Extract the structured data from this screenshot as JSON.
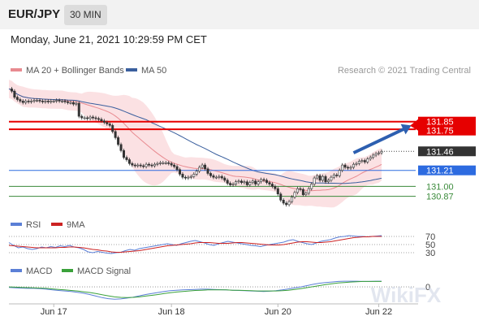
{
  "header": {
    "pair": "EUR/JPY",
    "timeframe": "30 MIN"
  },
  "datetime": "Monday, June 21, 2021 10:29:59 PM CET",
  "legend": {
    "ma20": "MA 20 + Bollinger Bands",
    "ma50": "MA 50",
    "credit": "Research © 2021 Trading Central"
  },
  "rsi_legend": {
    "rsi": "RSI",
    "ma": "9MA"
  },
  "macd_legend": {
    "macd": "MACD",
    "signal": "MACD Signal"
  },
  "colors": {
    "bollinger": "#f7c9cc",
    "ma20": "#e88a90",
    "ma50": "#3a5f9e",
    "resistance": "#e60000",
    "support": "#2d6be0",
    "support2": "#3a8a3a",
    "rsi": "#5b7fd6",
    "rsi_ma": "#cc2222",
    "macd": "#5b7fd6",
    "macd_signal": "#3aa13a"
  },
  "watermark": "WikiFX",
  "chart_data": [
    {
      "type": "line",
      "title": "EUR/JPY",
      "x_labels": [
        "Jun 17",
        "Jun 18",
        "Jun 20",
        "Jun 22"
      ],
      "x_label_index": [
        16,
        58,
        96,
        132
      ],
      "series": [
        {
          "name": "EUR/JPY",
          "values": [
            132.28,
            132.25,
            132.17,
            132.14,
            132.12,
            132.1,
            132.12,
            132.11,
            132.12,
            132.13,
            132.13,
            132.12,
            132.11,
            132.12,
            132.11,
            132.12,
            132.12,
            132.13,
            132.12,
            132.12,
            132.11,
            132.1,
            132.1,
            132.08,
            132.09,
            131.92,
            131.9,
            131.9,
            131.89,
            131.91,
            131.9,
            131.89,
            131.88,
            131.86,
            131.84,
            131.82,
            131.8,
            131.72,
            131.64,
            131.55,
            131.47,
            131.38,
            131.35,
            131.3,
            131.28,
            131.27,
            131.28,
            131.27,
            131.26,
            131.29,
            131.28,
            131.27,
            131.29,
            131.3,
            131.31,
            131.31,
            131.31,
            131.3,
            131.28,
            131.26,
            131.22,
            131.16,
            131.12,
            131.11,
            131.12,
            131.13,
            131.16,
            131.2,
            131.25,
            131.28,
            131.23,
            131.17,
            131.14,
            131.12,
            131.12,
            131.13,
            131.11,
            131.08,
            131.04,
            131.02,
            131.03,
            131.06,
            131.07,
            131.05,
            131.06,
            131.02,
            131.05,
            131.07,
            131.03,
            131.06,
            131.09,
            131.08,
            131.05,
            131.03,
            131.0,
            130.97,
            130.9,
            130.82,
            130.78,
            130.76,
            130.8,
            130.86,
            130.92,
            130.97,
            130.96,
            130.89,
            130.91,
            130.97,
            131.03,
            131.11,
            131.14,
            131.08,
            131.13,
            131.06,
            131.08,
            131.12,
            131.15,
            131.14,
            131.21,
            131.28,
            131.25,
            131.24,
            131.25,
            131.29,
            131.3,
            131.33,
            131.34,
            131.32,
            131.36,
            131.38,
            131.41,
            131.43,
            131.44,
            131.46
          ]
        }
      ],
      "ylim": [
        130.62,
        132.38
      ],
      "levels": [
        {
          "value": 131.85,
          "label": "131.85",
          "kind": "resistance"
        },
        {
          "value": 131.75,
          "label": "131.75",
          "kind": "resistance"
        },
        {
          "value": 131.46,
          "label": "131.46",
          "kind": "last"
        },
        {
          "value": 131.21,
          "label": "131.21",
          "kind": "support"
        },
        {
          "value": 131.0,
          "label": "131.00",
          "kind": "support2"
        },
        {
          "value": 130.87,
          "label": "130.87",
          "kind": "support2"
        }
      ],
      "target_arrow": {
        "from_index": 123,
        "from_value": 131.44,
        "to_index": 132,
        "to_value": 131.8
      }
    },
    {
      "type": "line",
      "title": "RSI",
      "series": [
        {
          "name": "RSI",
          "values": [
            55,
            48,
            42,
            44,
            40,
            38,
            40,
            44,
            42,
            45,
            43,
            47,
            45,
            48,
            44,
            42,
            38,
            32,
            30,
            33,
            31,
            29,
            28,
            30,
            31,
            35,
            38,
            36,
            40,
            42,
            44,
            46,
            48,
            50,
            52,
            50,
            48,
            52,
            55,
            58,
            60,
            57,
            54,
            50,
            48,
            52,
            55,
            58,
            56,
            54,
            52,
            50,
            48,
            47,
            45,
            48,
            50,
            52,
            54,
            56,
            60,
            62,
            58,
            55,
            52,
            50,
            54,
            58,
            60,
            62,
            66,
            69,
            70,
            72,
            71,
            70,
            70,
            69,
            70,
            71,
            72
          ]
        },
        {
          "name": "9MA",
          "values": [
            48,
            47,
            46,
            45,
            44,
            43,
            42,
            42,
            42,
            42,
            42,
            43,
            43,
            44,
            44,
            43,
            42,
            40,
            38,
            37,
            35,
            34,
            32,
            31,
            31,
            32,
            33,
            34,
            35,
            37,
            39,
            41,
            43,
            45,
            47,
            48,
            49,
            50,
            51,
            52,
            54,
            55,
            55,
            55,
            54,
            53,
            53,
            53,
            54,
            55,
            55,
            54,
            53,
            52,
            51,
            50,
            49,
            49,
            49,
            50,
            52,
            54,
            56,
            57,
            57,
            56,
            55,
            55,
            56,
            57,
            59,
            61,
            63,
            65,
            67,
            68,
            69,
            69,
            70,
            70,
            70
          ]
        }
      ],
      "levels": [
        {
          "value": 70,
          "label": "70"
        },
        {
          "value": 50,
          "label": "50"
        },
        {
          "value": 30,
          "label": "30"
        }
      ],
      "ylim": [
        20,
        80
      ]
    },
    {
      "type": "line",
      "title": "MACD",
      "series": [
        {
          "name": "MACD",
          "values": [
            -0.02,
            -0.04,
            -0.05,
            -0.06,
            -0.06,
            -0.07,
            -0.09,
            -0.12,
            -0.14,
            -0.16,
            -0.18,
            -0.21,
            -0.25,
            -0.3,
            -0.36,
            -0.42,
            -0.46,
            -0.48,
            -0.47,
            -0.44,
            -0.4,
            -0.35,
            -0.3,
            -0.26,
            -0.22,
            -0.18,
            -0.15,
            -0.13,
            -0.12,
            -0.11,
            -0.1,
            -0.09,
            -0.09,
            -0.1,
            -0.11,
            -0.12,
            -0.13,
            -0.14,
            -0.15,
            -0.16,
            -0.17,
            -0.18,
            -0.17,
            -0.15,
            -0.12,
            -0.08,
            -0.04,
            0.0,
            0.05,
            0.1,
            0.14,
            0.17,
            0.19,
            0.21,
            0.22,
            0.22,
            0.22,
            0.21,
            0.21,
            0.22,
            0.22
          ]
        },
        {
          "name": "MACD Signal",
          "values": [
            0.0,
            -0.01,
            -0.02,
            -0.03,
            -0.04,
            -0.05,
            -0.06,
            -0.08,
            -0.1,
            -0.12,
            -0.14,
            -0.16,
            -0.19,
            -0.22,
            -0.26,
            -0.31,
            -0.35,
            -0.39,
            -0.41,
            -0.42,
            -0.41,
            -0.39,
            -0.36,
            -0.33,
            -0.3,
            -0.26,
            -0.23,
            -0.2,
            -0.18,
            -0.16,
            -0.14,
            -0.13,
            -0.12,
            -0.12,
            -0.12,
            -0.12,
            -0.13,
            -0.13,
            -0.14,
            -0.15,
            -0.16,
            -0.16,
            -0.16,
            -0.16,
            -0.15,
            -0.13,
            -0.1,
            -0.07,
            -0.03,
            0.01,
            0.05,
            0.09,
            0.12,
            0.15,
            0.17,
            0.19,
            0.2,
            0.21,
            0.21,
            0.21,
            0.21
          ]
        }
      ],
      "levels": [
        {
          "value": 0,
          "label": "0"
        }
      ],
      "ylim": [
        -0.6,
        0.35
      ]
    }
  ]
}
